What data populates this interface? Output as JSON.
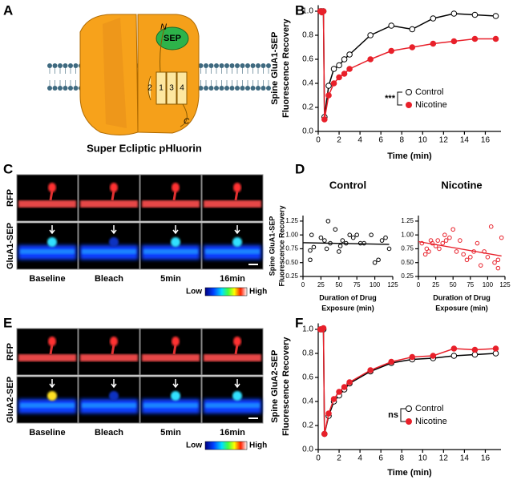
{
  "panel_letters": [
    "A",
    "B",
    "C",
    "D",
    "E",
    "F"
  ],
  "panels": {
    "A": {
      "caption": "Super Ecliptic pHluorin",
      "labels": [
        "N",
        "SEP",
        "1",
        "2",
        "3",
        "4",
        "C"
      ]
    },
    "C": {
      "rows": [
        "RFP",
        "GluA1-SEP"
      ],
      "columns": [
        "Baseline",
        "Bleach",
        "5min",
        "16min"
      ],
      "scale": [
        "Low",
        "High"
      ]
    },
    "E": {
      "rows": [
        "RFP",
        "GluA2-SEP"
      ],
      "columns": [
        "Baseline",
        "Bleach",
        "5min",
        "16min"
      ],
      "scale": [
        "Low",
        "High"
      ]
    }
  },
  "chart_data": [
    {
      "type": "line",
      "ylabel": [
        "Spine GluA1-SEP",
        "Fluorescence Recovery"
      ],
      "xlabel": [
        "Time (min)"
      ],
      "x": [
        0.2,
        0.35,
        0.5,
        0.6,
        1,
        1.5,
        2,
        2.5,
        3,
        5,
        7,
        9,
        11,
        13,
        15,
        17
      ],
      "series": [
        {
          "name": "Control",
          "color": "#000000",
          "marker": "open",
          "values": [
            1.0,
            1.0,
            1.0,
            0.12,
            0.38,
            0.52,
            0.55,
            0.6,
            0.64,
            0.8,
            0.88,
            0.85,
            0.94,
            0.98,
            0.97,
            0.96
          ]
        },
        {
          "name": "Nicotine",
          "color": "#e8202a",
          "marker": "filled",
          "values": [
            1.0,
            0.99,
            1.0,
            0.1,
            0.3,
            0.4,
            0.45,
            0.48,
            0.52,
            0.6,
            0.67,
            0.7,
            0.73,
            0.75,
            0.77,
            0.77
          ]
        }
      ],
      "annotation": "***",
      "xlim": [
        0,
        17.5
      ],
      "xticks": [
        0,
        2,
        4,
        6,
        8,
        10,
        12,
        14,
        16
      ],
      "ylim": [
        0,
        1.05
      ],
      "yticks": [
        {
          "value": 0,
          "label": "0.0"
        },
        {
          "value": 0.2,
          "label": "0.2"
        },
        {
          "value": 0.4,
          "label": "0.4"
        },
        {
          "value": 0.6,
          "label": "0.6"
        },
        {
          "value": 0.8,
          "label": "0.8"
        },
        {
          "value": 1,
          "label": "1.0"
        }
      ]
    },
    {
      "type": "scatter",
      "title": "Control",
      "ylabel": [
        "Spine GluA1-SEP",
        "Fluorescence Recovery"
      ],
      "xlabel": [
        "Duration of Drug",
        "Exposure (min)"
      ],
      "x": [
        10,
        10,
        12,
        15,
        25,
        30,
        33,
        35,
        38,
        45,
        50,
        52,
        55,
        60,
        65,
        70,
        75,
        80,
        85,
        95,
        100,
        105,
        110,
        115,
        120
      ],
      "series": [
        {
          "color": "#000000",
          "values": [
            0.55,
            0.72,
            1.0,
            0.78,
            0.95,
            0.9,
            0.75,
            1.25,
            0.85,
            1.1,
            0.7,
            0.8,
            0.9,
            0.85,
            1.0,
            0.95,
            1.0,
            0.85,
            0.85,
            1.0,
            0.5,
            0.55,
            0.9,
            0.95,
            0.75
          ]
        }
      ],
      "trend": {
        "x": [
          0,
          120
        ],
        "values": [
          0.86,
          0.83
        ]
      },
      "xlim": [
        0,
        125
      ],
      "xticks": [
        0,
        25,
        50,
        75,
        100,
        125
      ],
      "ylim": [
        0.25,
        1.35
      ],
      "yticks": [
        {
          "value": 0.25,
          "label": "0.25"
        },
        {
          "value": 0.5,
          "label": "0.50"
        },
        {
          "value": 0.75,
          "label": "0.75"
        },
        {
          "value": 1,
          "label": "1.00"
        },
        {
          "value": 1.25,
          "label": "1.25"
        }
      ]
    },
    {
      "type": "scatter",
      "title": "Nicotine",
      "xlabel": [
        "Duration of Drug",
        "Exposure (min)"
      ],
      "x": [
        5,
        10,
        12,
        15,
        18,
        20,
        25,
        28,
        30,
        35,
        38,
        40,
        45,
        50,
        55,
        60,
        65,
        70,
        75,
        80,
        85,
        90,
        95,
        100,
        105,
        110,
        115,
        120,
        115
      ],
      "series": [
        {
          "color": "#e8202a",
          "values": [
            0.85,
            0.65,
            0.75,
            0.7,
            0.9,
            0.85,
            0.8,
            0.9,
            0.75,
            0.85,
            1.0,
            0.9,
            0.95,
            1.1,
            0.7,
            0.9,
            0.65,
            0.55,
            0.6,
            0.7,
            0.85,
            0.45,
            0.7,
            0.6,
            1.15,
            0.5,
            0.55,
            0.95,
            0.4
          ]
        }
      ],
      "trend": {
        "x": [
          0,
          120
        ],
        "values": [
          0.88,
          0.62
        ]
      },
      "xlim": [
        0,
        125
      ],
      "xticks": [
        0,
        25,
        50,
        75,
        100,
        125
      ],
      "ylim": [
        0.25,
        1.35
      ],
      "yticks": [
        {
          "value": 0.25,
          "label": "0.25"
        },
        {
          "value": 0.5,
          "label": "0.50"
        },
        {
          "value": 0.75,
          "label": "0.75"
        },
        {
          "value": 1,
          "label": "1.00"
        },
        {
          "value": 1.25,
          "label": "1.25"
        }
      ]
    },
    {
      "type": "line",
      "ylabel": [
        "Spine GluA2-SEP",
        "Fluorescence Recovery"
      ],
      "xlabel": [
        "Time (min)"
      ],
      "x": [
        0.2,
        0.35,
        0.5,
        0.6,
        1,
        1.5,
        2,
        2.5,
        3,
        5,
        7,
        9,
        11,
        13,
        15,
        17
      ],
      "series": [
        {
          "name": "Control",
          "color": "#000000",
          "marker": "open",
          "values": [
            1.0,
            1.0,
            1.0,
            0.13,
            0.28,
            0.4,
            0.45,
            0.5,
            0.55,
            0.65,
            0.72,
            0.75,
            0.76,
            0.78,
            0.79,
            0.8
          ]
        },
        {
          "name": "Nicotine",
          "color": "#e8202a",
          "marker": "filled",
          "values": [
            1.0,
            1.0,
            1.01,
            0.13,
            0.3,
            0.42,
            0.48,
            0.52,
            0.56,
            0.66,
            0.73,
            0.77,
            0.78,
            0.84,
            0.83,
            0.84
          ]
        }
      ],
      "annotation": "ns",
      "xlim": [
        0,
        17.5
      ],
      "xticks": [
        0,
        2,
        4,
        6,
        8,
        10,
        12,
        14,
        16
      ],
      "ylim": [
        0,
        1.05
      ],
      "yticks": [
        {
          "value": 0,
          "label": "0.0"
        },
        {
          "value": 0.2,
          "label": "0.2"
        },
        {
          "value": 0.4,
          "label": "0.4"
        },
        {
          "value": 0.6,
          "label": "0.6"
        },
        {
          "value": 0.8,
          "label": "0.8"
        },
        {
          "value": 1,
          "label": "1.0"
        }
      ]
    }
  ]
}
